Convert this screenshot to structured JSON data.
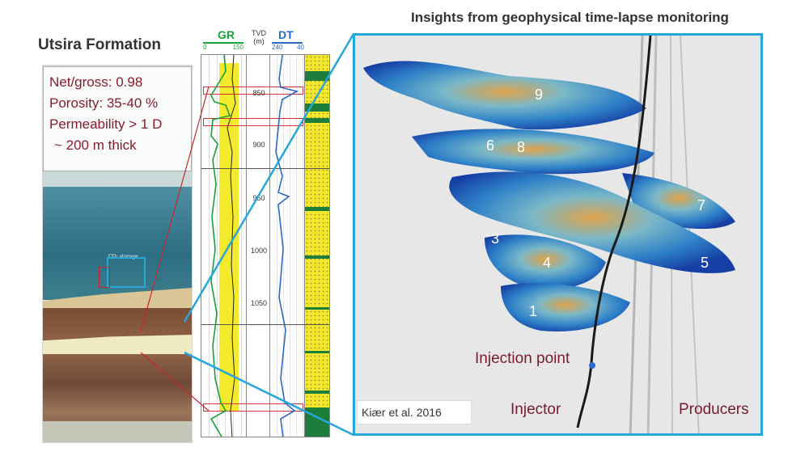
{
  "titles": {
    "left": "Utsira Formation",
    "right": "Insights from geophysical time-lapse monitoring"
  },
  "formation_properties": [
    "Net/gross: 0.98",
    "Porosity: 35-40 %",
    "Permeability > 1 D",
    "~ 200 m thick"
  ],
  "geology": {
    "co2_label": "CO₂ storage"
  },
  "well_log": {
    "gr": {
      "name": "GR",
      "scale_min": "0",
      "scale_max": "150",
      "color": "#1aa13a"
    },
    "tvd": {
      "name": "TVD",
      "unit": "(m)",
      "ticks": [
        "850",
        "900",
        "950",
        "1000",
        "1050"
      ]
    },
    "dt": {
      "name": "DT",
      "scale_min": "240",
      "scale_max": "40",
      "color": "#2a6ac0"
    }
  },
  "monitoring": {
    "layer_labels": [
      "1",
      "3",
      "4",
      "5",
      "6",
      "7",
      "8",
      "9"
    ],
    "injection_point": "Injection point",
    "injector": "Injector",
    "producers": "Producers",
    "citation": "Kiær et al. 2016"
  },
  "colors": {
    "accent_blue": "#25a7db",
    "highlight_red": "#c8262f",
    "text_dark_red": "#8b1a2c"
  }
}
